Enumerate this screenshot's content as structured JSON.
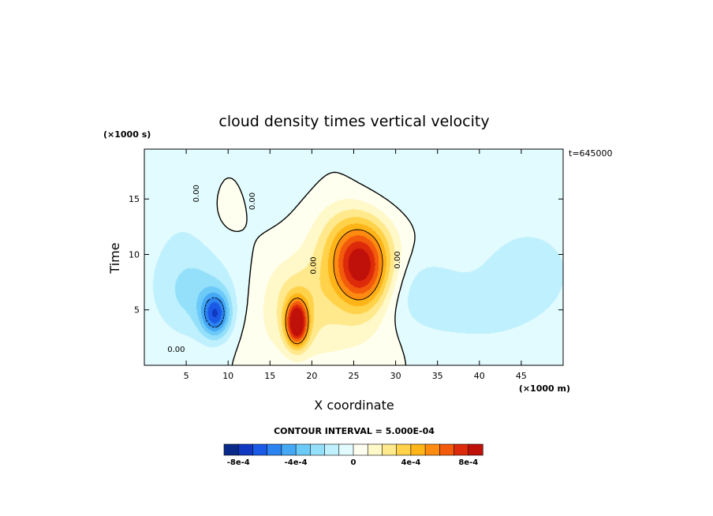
{
  "chart_data": {
    "type": "heatmap",
    "title": "cloud density times vertical velocity",
    "xlabel": "X coordinate",
    "ylabel": "Time",
    "x_units": "(×1000 m)",
    "y_units": "(×1000 s)",
    "time_stamp": "t=645000",
    "xlim": [
      0,
      50
    ],
    "ylim": [
      0,
      19.5
    ],
    "x_ticks": [
      5,
      10,
      15,
      20,
      25,
      30,
      35,
      40,
      45
    ],
    "y_ticks": [
      5,
      10,
      15
    ],
    "contour_interval_text": "CONTOUR INTERVAL = 5.000E-04",
    "contour_interval": 0.0005,
    "zero_contour_label": "0.00",
    "colorbar": {
      "min": -0.0009,
      "max": 0.0009,
      "step": 0.0001,
      "colors": [
        "#0a2a8a",
        "#1038c0",
        "#1a5ae6",
        "#2b84f0",
        "#45a8f5",
        "#6ccaf8",
        "#94e0fb",
        "#bff0fd",
        "#e2fbfe",
        "#fffff0",
        "#fff8c8",
        "#ffe98c",
        "#ffd24a",
        "#ffb418",
        "#ff8c10",
        "#f25a0c",
        "#dd2a0a",
        "#c0100a"
      ],
      "tick_values": [
        -0.0008,
        -0.0004,
        0,
        0.0004,
        0.0008
      ],
      "tick_labels": [
        "-8e-4",
        "-4e-4",
        "0",
        "4e-4",
        "8e-4"
      ]
    },
    "features": [
      {
        "type": "max",
        "x": 26,
        "y": 8.5,
        "value": 0.00065
      },
      {
        "type": "max",
        "x": 18.2,
        "y": 4,
        "value": 0.00085
      },
      {
        "type": "min",
        "x": 8.5,
        "y": 4.7,
        "value": -0.00055
      }
    ]
  }
}
